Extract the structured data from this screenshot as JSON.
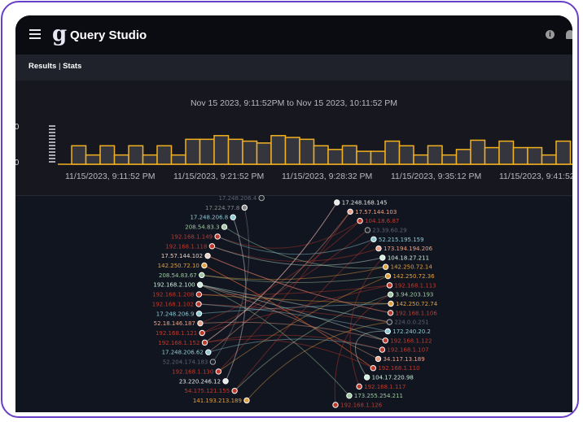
{
  "app": {
    "title": "Query Studio",
    "logo": "g",
    "menu_icon": "hamburger-icon",
    "info_icon": "info-icon",
    "bell_icon": "bell-icon"
  },
  "tabs": {
    "results": "Results",
    "separator": "|",
    "stats": "Stats"
  },
  "histogram": {
    "range_label": "Nov 15 2023, 9:11:52PM to Nov 15 2023, 10:11:52 PM",
    "y_labels": [
      ".0",
      ".0"
    ],
    "x_labels": [
      "11/15/2023, 9:11:52 PM",
      "11/15/2023, 9:21:52 PM",
      "11/15/2023, 9:28:32 PM",
      "11/15/2023, 9:35:12 PM",
      "11/15/2023, 9:41:52 PM"
    ],
    "bar_color": "#f2b01e",
    "bar_fill": "#34353d",
    "values": [
      2,
      1,
      2,
      1,
      2,
      1,
      2,
      1,
      2.7,
      2.7,
      3.1,
      2.7,
      2.5,
      2.3,
      3.1,
      2.9,
      2.7,
      2,
      1.6,
      2,
      1.4,
      1.4,
      2.5,
      2,
      1,
      2,
      1,
      1.6,
      2.6,
      1.8,
      2.5,
      1.8,
      1.8,
      1,
      2.5
    ],
    "max": 4.5
  },
  "graph": {
    "nodes": [
      {
        "label": "17.248.168.145",
        "color": "#e8e8e8"
      },
      {
        "label": "17.57.144.103",
        "color": "#e8a38a"
      },
      {
        "label": "104.18.6.87",
        "color": "#c0392b"
      },
      {
        "label": "23.39.60.29",
        "color": "dim"
      },
      {
        "label": "52.215.195.159",
        "color": "#8ecad3"
      },
      {
        "label": "173.194.194.206",
        "color": "#e8a38a"
      },
      {
        "label": "104.18.27.211",
        "color": "#cfeede"
      },
      {
        "label": "142.250.72.14",
        "color": "#e0a040"
      },
      {
        "label": "142.250.72.36",
        "color": "#e0a040"
      },
      {
        "label": "192.168.1.113",
        "color": "#c0392b"
      },
      {
        "label": "3.94.203.193",
        "color": "#9ec9a0"
      },
      {
        "label": "142.250.72.74",
        "color": "#e0a040"
      },
      {
        "label": "192.168.1.106",
        "color": "#c0392b"
      },
      {
        "label": "224.0.0.251",
        "color": "dim"
      },
      {
        "label": "172.240.20.2",
        "color": "#8ecad3"
      },
      {
        "label": "192.168.1.122",
        "color": "#c0392b"
      },
      {
        "label": "192.168.1.107",
        "color": "#c0392b"
      },
      {
        "label": "34.117.13.189",
        "color": "#e8a38a"
      },
      {
        "label": "192.168.1.110",
        "color": "#c0392b"
      },
      {
        "label": "104.17.220.98",
        "color": "#cfeede"
      },
      {
        "label": "192.168.1.117",
        "color": "#c0392b"
      },
      {
        "label": "173.255.254.211",
        "color": "#9ec9a0"
      },
      {
        "label": "192.168.1.126",
        "color": "#c0392b"
      },
      {
        "label": "141.193.213.189",
        "color": "#e0a040"
      },
      {
        "label": "54.175.121.155",
        "color": "#c0392b"
      },
      {
        "label": "23.220.246.12",
        "color": "#e8e8e8"
      },
      {
        "label": "192.168.1.130",
        "color": "#c0392b"
      },
      {
        "label": "52.204.174.183",
        "color": "dim"
      },
      {
        "label": "17.248.206.62",
        "color": "#8ecad3"
      },
      {
        "label": "192.168.1.152",
        "color": "#c0392b"
      },
      {
        "label": "192.168.1.121",
        "color": "#c0392b"
      },
      {
        "label": "52.18.146.187",
        "color": "#e8a38a"
      },
      {
        "label": "17.248.206.9",
        "color": "#8ecad3"
      },
      {
        "label": "192.168.1.102",
        "color": "#c0392b"
      },
      {
        "label": "192.168.1.208",
        "color": "#c0392b"
      },
      {
        "label": "192.168.2.100",
        "color": "#cfeede"
      },
      {
        "label": "208.54.83.67",
        "color": "#9ec9a0"
      },
      {
        "label": "142.250.72.10",
        "color": "#e0a040"
      },
      {
        "label": "17.57.144.102",
        "color": "#e8d0c8"
      },
      {
        "label": "192.168.1.118",
        "color": "#c0392b"
      },
      {
        "label": "192.168.1.149",
        "color": "#c0392b"
      },
      {
        "label": "208.54.83.3",
        "color": "#9ec9a0"
      },
      {
        "label": "17.248.206.8",
        "color": "#8ecad3"
      },
      {
        "label": "17.224.77.8",
        "color": "#888888"
      },
      {
        "label": "17.248.206.4",
        "color": "dim"
      }
    ],
    "edges": [
      [
        35,
        13
      ],
      [
        35,
        15
      ],
      [
        29,
        18
      ],
      [
        29,
        0
      ],
      [
        33,
        13
      ],
      [
        31,
        15
      ],
      [
        38,
        12
      ],
      [
        37,
        18
      ],
      [
        30,
        3
      ],
      [
        39,
        5
      ],
      [
        40,
        2
      ],
      [
        41,
        7
      ],
      [
        36,
        8
      ],
      [
        34,
        9
      ],
      [
        32,
        11
      ],
      [
        28,
        16
      ],
      [
        26,
        1
      ],
      [
        24,
        4
      ],
      [
        22,
        10
      ],
      [
        20,
        6
      ],
      [
        19,
        14
      ],
      [
        17,
        35
      ],
      [
        16,
        29
      ],
      [
        25,
        42
      ],
      [
        27,
        43
      ],
      [
        23,
        13
      ],
      [
        21,
        35
      ],
      [
        18,
        37
      ],
      [
        12,
        38
      ],
      [
        9,
        30
      ],
      [
        14,
        33
      ],
      [
        11,
        34
      ],
      [
        6,
        39
      ],
      [
        4,
        40
      ],
      [
        0,
        29
      ],
      [
        1,
        28
      ],
      [
        2,
        31
      ],
      [
        7,
        36
      ],
      [
        8,
        26
      ],
      [
        10,
        24
      ]
    ]
  }
}
